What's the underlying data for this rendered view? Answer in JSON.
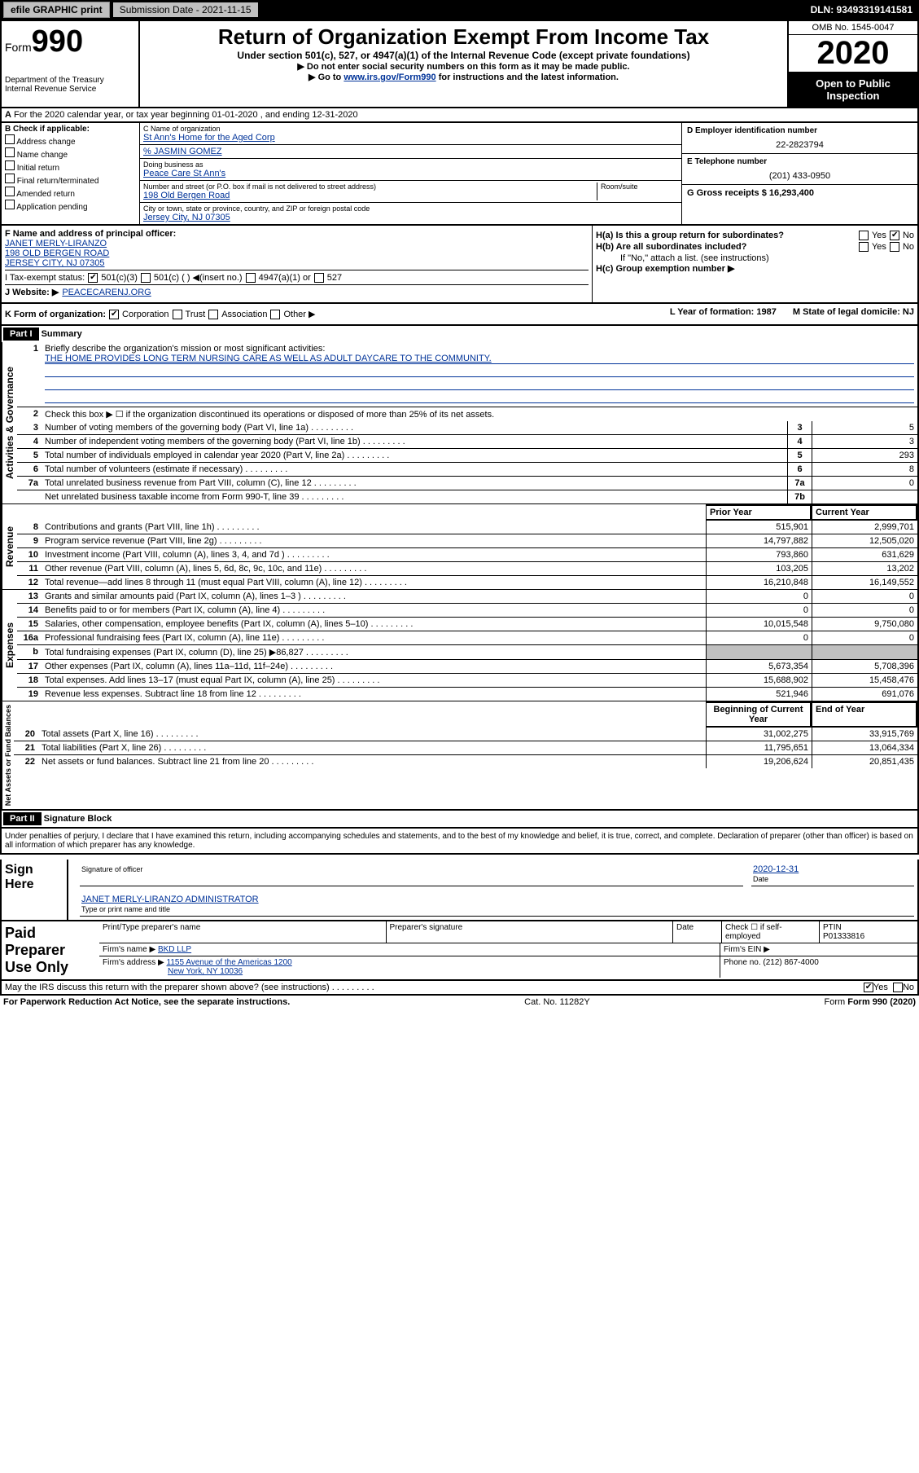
{
  "topbar": {
    "efile_label": "efile GRAPHIC print",
    "submission_label": "Submission Date - 2021-11-15",
    "dln": "DLN: 93493319141581"
  },
  "header": {
    "form_label": "Form",
    "form_number": "990",
    "dept": "Department of the Treasury",
    "irs": "Internal Revenue Service",
    "title": "Return of Organization Exempt From Income Tax",
    "subtitle": "Under section 501(c), 527, or 4947(a)(1) of the Internal Revenue Code (except private foundations)",
    "note1": "▶ Do not enter social security numbers on this form as it may be made public.",
    "note2_pre": "▶ Go to ",
    "note2_link": "www.irs.gov/Form990",
    "note2_post": " for instructions and the latest information.",
    "omb": "OMB No. 1545-0047",
    "year": "2020",
    "inspect": "Open to Public Inspection"
  },
  "row_a": "For the 2020 calendar year, or tax year beginning 01-01-2020   , and ending 12-31-2020",
  "col_b": {
    "title": "B Check if applicable:",
    "opts": [
      "Address change",
      "Name change",
      "Initial return",
      "Final return/terminated",
      "Amended return",
      "Application pending"
    ]
  },
  "col_c": {
    "name_lbl": "C Name of organization",
    "name": "St Ann's Home for the Aged Corp",
    "care_lbl": "% JASMIN GOMEZ",
    "dba_lbl": "Doing business as",
    "dba": "Peace Care St Ann's",
    "street_lbl": "Number and street (or P.O. box if mail is not delivered to street address)",
    "room_lbl": "Room/suite",
    "street": "198 Old Bergen Road",
    "city_lbl": "City or town, state or province, country, and ZIP or foreign postal code",
    "city": "Jersey City, NJ  07305"
  },
  "col_d": {
    "ein_lbl": "D Employer identification number",
    "ein": "22-2823794",
    "phone_lbl": "E Telephone number",
    "phone": "(201) 433-0950",
    "gross_lbl": "G Gross receipts $ 16,293,400"
  },
  "fj": {
    "f_lbl": "F  Name and address of principal officer:",
    "f_name": "JANET MERLY-LIRANZO",
    "f_addr1": "198 OLD BERGEN ROAD",
    "f_addr2": "JERSEY CITY, NJ  07305",
    "i_lbl": "I  Tax-exempt status:",
    "i_opts": [
      "501(c)(3)",
      "501(c) (  ) ◀(insert no.)",
      "4947(a)(1) or",
      "527"
    ],
    "j_lbl": "J  Website: ▶",
    "j_val": " PEACECARENJ.ORG",
    "ha_lbl": "H(a)  Is this a group return for subordinates?",
    "hb_lbl": "H(b)  Are all subordinates included?",
    "hb_note": "If \"No,\" attach a list. (see instructions)",
    "hc_lbl": "H(c)  Group exemption number ▶"
  },
  "km": {
    "k_lbl": "K Form of organization:",
    "k_opts": [
      "Corporation",
      "Trust",
      "Association",
      "Other ▶"
    ],
    "l_lbl": "L Year of formation: 1987",
    "m_lbl": "M State of legal domicile: NJ"
  },
  "part1": {
    "hdr": "Part I",
    "title": "Summary",
    "q1": "Briefly describe the organization's mission or most significant activities:",
    "mission": "THE HOME PROVIDES LONG TERM NURSING CARE AS WELL AS ADULT DAYCARE TO THE COMMUNITY.",
    "q2": "Check this box ▶ ☐  if the organization discontinued its operations or disposed of more than 25% of its net assets.",
    "gov_lines": [
      {
        "n": "3",
        "d": "Number of voting members of the governing body (Part VI, line 1a)",
        "box": "3",
        "v": "5"
      },
      {
        "n": "4",
        "d": "Number of independent voting members of the governing body (Part VI, line 1b)",
        "box": "4",
        "v": "3"
      },
      {
        "n": "5",
        "d": "Total number of individuals employed in calendar year 2020 (Part V, line 2a)",
        "box": "5",
        "v": "293"
      },
      {
        "n": "6",
        "d": "Total number of volunteers (estimate if necessary)",
        "box": "6",
        "v": "8"
      },
      {
        "n": "7a",
        "d": "Total unrelated business revenue from Part VIII, column (C), line 12",
        "box": "7a",
        "v": "0"
      },
      {
        "n": "",
        "d": "Net unrelated business taxable income from Form 990-T, line 39",
        "box": "7b",
        "v": ""
      }
    ],
    "prior_hdr": "Prior Year",
    "curr_hdr": "Current Year",
    "rev_lines": [
      {
        "n": "8",
        "d": "Contributions and grants (Part VIII, line 1h)",
        "p": "515,901",
        "c": "2,999,701"
      },
      {
        "n": "9",
        "d": "Program service revenue (Part VIII, line 2g)",
        "p": "14,797,882",
        "c": "12,505,020"
      },
      {
        "n": "10",
        "d": "Investment income (Part VIII, column (A), lines 3, 4, and 7d )",
        "p": "793,860",
        "c": "631,629"
      },
      {
        "n": "11",
        "d": "Other revenue (Part VIII, column (A), lines 5, 6d, 8c, 9c, 10c, and 11e)",
        "p": "103,205",
        "c": "13,202"
      },
      {
        "n": "12",
        "d": "Total revenue—add lines 8 through 11 (must equal Part VIII, column (A), line 12)",
        "p": "16,210,848",
        "c": "16,149,552"
      }
    ],
    "exp_lines": [
      {
        "n": "13",
        "d": "Grants and similar amounts paid (Part IX, column (A), lines 1–3 )",
        "p": "0",
        "c": "0"
      },
      {
        "n": "14",
        "d": "Benefits paid to or for members (Part IX, column (A), line 4)",
        "p": "0",
        "c": "0"
      },
      {
        "n": "15",
        "d": "Salaries, other compensation, employee benefits (Part IX, column (A), lines 5–10)",
        "p": "10,015,548",
        "c": "9,750,080"
      },
      {
        "n": "16a",
        "d": "Professional fundraising fees (Part IX, column (A), line 11e)",
        "p": "0",
        "c": "0"
      },
      {
        "n": "b",
        "d": "Total fundraising expenses (Part IX, column (D), line 25) ▶86,827",
        "p": "grey",
        "c": "grey"
      },
      {
        "n": "17",
        "d": "Other expenses (Part IX, column (A), lines 11a–11d, 11f–24e)",
        "p": "5,673,354",
        "c": "5,708,396"
      },
      {
        "n": "18",
        "d": "Total expenses. Add lines 13–17 (must equal Part IX, column (A), line 25)",
        "p": "15,688,902",
        "c": "15,458,476"
      },
      {
        "n": "19",
        "d": "Revenue less expenses. Subtract line 18 from line 12",
        "p": "521,946",
        "c": "691,076"
      }
    ],
    "bal_hdr1": "Beginning of Current Year",
    "bal_hdr2": "End of Year",
    "bal_lines": [
      {
        "n": "20",
        "d": "Total assets (Part X, line 16)",
        "p": "31,002,275",
        "c": "33,915,769"
      },
      {
        "n": "21",
        "d": "Total liabilities (Part X, line 26)",
        "p": "11,795,651",
        "c": "13,064,334"
      },
      {
        "n": "22",
        "d": "Net assets or fund balances. Subtract line 21 from line 20",
        "p": "19,206,624",
        "c": "20,851,435"
      }
    ],
    "vtab_gov": "Activities & Governance",
    "vtab_rev": "Revenue",
    "vtab_exp": "Expenses",
    "vtab_bal": "Net Assets or Fund Balances"
  },
  "part2": {
    "hdr": "Part II",
    "title": "Signature Block",
    "decl": "Under penalties of perjury, I declare that I have examined this return, including accompanying schedules and statements, and to the best of my knowledge and belief, it is true, correct, and complete. Declaration of preparer (other than officer) is based on all information of which preparer has any knowledge.",
    "sign_here": "Sign Here",
    "sig_officer_lbl": "Signature of officer",
    "date_lbl": "Date",
    "date_val": "2020-12-31",
    "name_title": "JANET MERLY-LIRANZO  ADMINISTRATOR",
    "name_lbl": "Type or print name and title",
    "paid_prep": "Paid Preparer Use Only",
    "prep_name_lbl": "Print/Type preparer's name",
    "prep_sig_lbl": "Preparer's signature",
    "prep_date_lbl": "Date",
    "check_self": "Check ☐  if self-employed",
    "ptin_lbl": "PTIN",
    "ptin": "P01333816",
    "firm_name_lbl": "Firm's name    ▶",
    "firm_name": "BKD LLP",
    "firm_ein_lbl": "Firm's EIN ▶",
    "firm_addr_lbl": "Firm's address ▶",
    "firm_addr1": "1155 Avenue of the Americas 1200",
    "firm_addr2": "New York, NY  10036",
    "firm_phone_lbl": "Phone no. (212) 867-4000",
    "discuss": "May the IRS discuss this return with the preparer shown above? (see instructions)"
  },
  "footer": {
    "pra": "For Paperwork Reduction Act Notice, see the separate instructions.",
    "cat": "Cat. No. 11282Y",
    "form": "Form 990 (2020)"
  }
}
